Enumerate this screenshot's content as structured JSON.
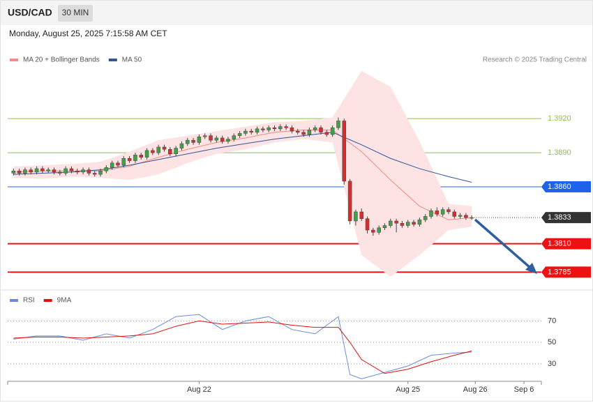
{
  "header": {
    "symbol": "USD/CAD",
    "interval": "30 MIN",
    "timestamp": "Monday, August 25, 2025 7:15:58 AM CET"
  },
  "source": "Research © 2025 Trading Central",
  "chart_data": [
    {
      "type": "candlestick",
      "xlim": [
        -1,
        91
      ],
      "ylim": [
        1.3773,
        1.3963
      ],
      "up_color": "#43a047",
      "down_color": "#d32f2f",
      "open": [
        1.3872,
        1.3874,
        1.3872,
        1.3875,
        1.3873,
        1.3876,
        1.3874,
        1.3875,
        1.3873,
        1.3872,
        1.3876,
        1.3874,
        1.3873,
        1.3875,
        1.3872,
        1.3871,
        1.3874,
        1.3877,
        1.3881,
        1.3879,
        1.3885,
        1.3883,
        1.3888,
        1.3886,
        1.3892,
        1.389,
        1.3895,
        1.3893,
        1.3889,
        1.3894,
        1.3898,
        1.3901,
        1.3899,
        1.3904,
        1.3905,
        1.3901,
        1.3903,
        1.39,
        1.3902,
        1.3905,
        1.3907,
        1.3909,
        1.3908,
        1.3911,
        1.391,
        1.3912,
        1.3911,
        1.3913,
        1.3912,
        1.3909,
        1.3908,
        1.3906,
        1.391,
        1.3912,
        1.3908,
        1.3906,
        1.3912,
        1.3918,
        1.3865,
        1.383,
        1.3838,
        1.3832,
        1.3822,
        1.382,
        1.3824,
        1.3826,
        1.383,
        1.3828,
        1.3826,
        1.3829,
        1.3827,
        1.3831,
        1.3834,
        1.3839,
        1.3836,
        1.384,
        1.3838,
        1.3834,
        1.3835,
        1.3833
      ],
      "high": [
        1.3876,
        1.3876,
        1.3877,
        1.3877,
        1.3878,
        1.3878,
        1.3877,
        1.3877,
        1.3875,
        1.3878,
        1.3878,
        1.3876,
        1.3877,
        1.3877,
        1.3874,
        1.3876,
        1.3879,
        1.3883,
        1.3883,
        1.3887,
        1.3887,
        1.389,
        1.389,
        1.3894,
        1.3894,
        1.3897,
        1.3897,
        1.3895,
        1.3896,
        1.39,
        1.3903,
        1.3903,
        1.3906,
        1.3907,
        1.3907,
        1.3905,
        1.3905,
        1.3904,
        1.3907,
        1.3909,
        1.3911,
        1.3911,
        1.3913,
        1.3913,
        1.3914,
        1.3914,
        1.3915,
        1.3915,
        1.3914,
        1.3911,
        1.391,
        1.3912,
        1.3914,
        1.3914,
        1.391,
        1.3914,
        1.3921,
        1.392,
        1.3867,
        1.384,
        1.3841,
        1.3834,
        1.3824,
        1.3826,
        1.3828,
        1.3832,
        1.3832,
        1.383,
        1.3831,
        1.3831,
        1.3833,
        1.3836,
        1.3841,
        1.3842,
        1.3842,
        1.3842,
        1.384,
        1.3837,
        1.3837,
        1.3835
      ],
      "low": [
        1.387,
        1.387,
        1.387,
        1.3871,
        1.3871,
        1.3872,
        1.3872,
        1.3871,
        1.387,
        1.387,
        1.3872,
        1.3871,
        1.3871,
        1.387,
        1.3869,
        1.3869,
        1.3872,
        1.3875,
        1.3877,
        1.3877,
        1.3881,
        1.3881,
        1.3884,
        1.3884,
        1.3888,
        1.3888,
        1.3891,
        1.3887,
        1.3887,
        1.3892,
        1.3896,
        1.3897,
        1.3897,
        1.3902,
        1.3899,
        1.3899,
        1.3898,
        1.3898,
        1.39,
        1.3903,
        1.3905,
        1.3906,
        1.3906,
        1.3908,
        1.3908,
        1.3909,
        1.3909,
        1.391,
        1.3907,
        1.3906,
        1.3904,
        1.3904,
        1.3908,
        1.3906,
        1.3904,
        1.3904,
        1.391,
        1.3862,
        1.3827,
        1.3826,
        1.383,
        1.3819,
        1.3817,
        1.3818,
        1.3822,
        1.3824,
        1.382,
        1.3824,
        1.3824,
        1.3825,
        1.3825,
        1.3829,
        1.3832,
        1.3834,
        1.3834,
        1.3836,
        1.3832,
        1.3832,
        1.3831,
        1.3831
      ],
      "close": [
        1.3874,
        1.3872,
        1.3875,
        1.3873,
        1.3876,
        1.3874,
        1.3875,
        1.3873,
        1.3872,
        1.3876,
        1.3874,
        1.3873,
        1.3875,
        1.3872,
        1.3871,
        1.3874,
        1.3877,
        1.3881,
        1.3879,
        1.3885,
        1.3883,
        1.3888,
        1.3886,
        1.3892,
        1.389,
        1.3895,
        1.3893,
        1.3889,
        1.3894,
        1.3898,
        1.3901,
        1.3899,
        1.3904,
        1.3905,
        1.3901,
        1.3903,
        1.39,
        1.3902,
        1.3905,
        1.3907,
        1.3909,
        1.3908,
        1.3911,
        1.391,
        1.3912,
        1.3911,
        1.3913,
        1.3912,
        1.3909,
        1.3908,
        1.3906,
        1.391,
        1.3912,
        1.3908,
        1.3906,
        1.3912,
        1.3918,
        1.3865,
        1.383,
        1.3838,
        1.3832,
        1.3822,
        1.382,
        1.3824,
        1.3826,
        1.383,
        1.3828,
        1.3826,
        1.3829,
        1.3827,
        1.3831,
        1.3834,
        1.3839,
        1.3836,
        1.384,
        1.3838,
        1.3834,
        1.3835,
        1.3833,
        1.3833
      ],
      "series": [
        {
          "name": "MA 20 + Bollinger Bands",
          "color": "#f28b82",
          "band_color": "#fde3e3",
          "x": [
            0,
            5,
            10,
            15,
            20,
            25,
            30,
            35,
            40,
            45,
            50,
            55,
            60,
            65,
            70,
            75,
            79
          ],
          "values": [
            1.3873,
            1.3874,
            1.3874,
            1.3874,
            1.3878,
            1.3886,
            1.3893,
            1.3899,
            1.3903,
            1.3908,
            1.391,
            1.391,
            1.3891,
            1.3866,
            1.3843,
            1.3831,
            1.3833
          ],
          "upper": [
            1.3878,
            1.3879,
            1.388,
            1.3882,
            1.3891,
            1.3901,
            1.3905,
            1.3909,
            1.3913,
            1.3917,
            1.3918,
            1.3921,
            1.3962,
            1.3948,
            1.39,
            1.3845,
            1.3843
          ],
          "lower": [
            1.3868,
            1.3867,
            1.3869,
            1.3868,
            1.3866,
            1.3871,
            1.3881,
            1.3889,
            1.3893,
            1.3899,
            1.3902,
            1.3899,
            1.38,
            1.3781,
            1.38,
            1.3822,
            1.3825
          ]
        },
        {
          "name": "MA 50",
          "color": "#2f5597",
          "x": [
            0,
            5,
            10,
            15,
            20,
            25,
            30,
            35,
            40,
            45,
            50,
            55,
            60,
            65,
            70,
            75,
            79
          ],
          "values": [
            1.3871,
            1.3872,
            1.3873,
            1.3875,
            1.3879,
            1.3884,
            1.3889,
            1.3894,
            1.3898,
            1.3902,
            1.3905,
            1.3908,
            1.3897,
            1.3885,
            1.3876,
            1.3869,
            1.3864
          ]
        }
      ],
      "levels": [
        {
          "value": 1.392,
          "label": "1.3920",
          "color": "#8bc34a",
          "box": false
        },
        {
          "value": 1.389,
          "label": "1.3890",
          "color": "#8bc34a",
          "box": false
        },
        {
          "value": 1.386,
          "label": "1.3860",
          "color": "#1e63e9",
          "box": true
        },
        {
          "value": 1.3833,
          "label": "1.3833",
          "color": "#333333",
          "box": true,
          "dotted": true
        },
        {
          "value": 1.381,
          "label": "1.3810",
          "color": "#ee1111",
          "box": true
        },
        {
          "value": 1.3785,
          "label": "1.3785",
          "color": "#ee1111",
          "box": true
        }
      ]
    },
    {
      "type": "line",
      "xlim": [
        -1,
        91
      ],
      "ylim": [
        15,
        80
      ],
      "yticks": [
        30,
        50,
        70
      ],
      "xticks": [
        {
          "value": 32,
          "label": "Aug 22"
        },
        {
          "value": 68,
          "label": "Aug 25"
        },
        {
          "value": 79.6,
          "label": "Aug 26"
        },
        {
          "value": 88,
          "label": "Sep 6"
        }
      ],
      "series": [
        {
          "name": "RSI",
          "color": "#6a8bdc",
          "x": [
            0,
            4,
            8,
            12,
            16,
            20,
            24,
            28,
            32,
            36,
            40,
            44,
            48,
            52,
            56,
            58,
            60,
            64,
            68,
            72,
            76,
            79
          ],
          "values": [
            53,
            56,
            56,
            52,
            58,
            54,
            62,
            74,
            76,
            62,
            70,
            74,
            62,
            58,
            74,
            20,
            16,
            22,
            28,
            38,
            40,
            41
          ]
        },
        {
          "name": "9MA",
          "color": "#e01010",
          "x": [
            0,
            4,
            8,
            12,
            16,
            20,
            24,
            28,
            32,
            36,
            40,
            44,
            48,
            52,
            56,
            58,
            60,
            64,
            68,
            72,
            76,
            79
          ],
          "values": [
            54,
            55,
            55,
            54,
            55,
            56,
            58,
            65,
            70,
            67,
            68,
            69,
            66,
            64,
            64,
            50,
            34,
            21,
            25,
            32,
            38,
            42
          ]
        }
      ]
    }
  ]
}
